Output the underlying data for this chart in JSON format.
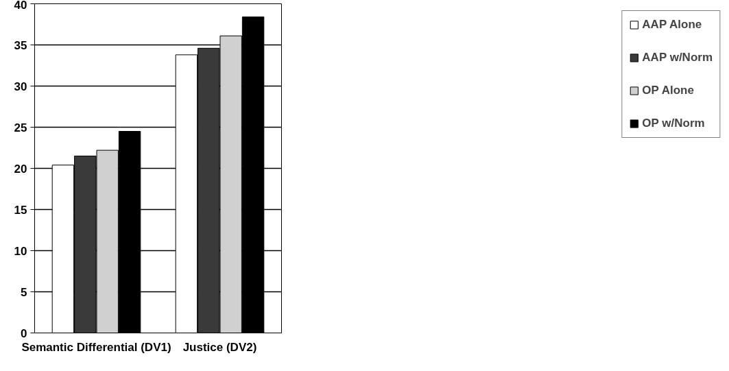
{
  "chart_data": {
    "type": "bar",
    "categories": [
      "Semantic Differential (DV1)",
      "Justice (DV2)"
    ],
    "series": [
      {
        "name": "AAP Alone",
        "color": "#ffffff",
        "values": [
          20.4,
          33.8
        ]
      },
      {
        "name": "AAP w/Norm",
        "color": "#3a3a3a",
        "values": [
          21.5,
          34.6
        ]
      },
      {
        "name": "OP Alone",
        "color": "#d0d0d0",
        "values": [
          22.2,
          36.1
        ]
      },
      {
        "name": "OP w/Norm",
        "color": "#000000",
        "values": [
          24.5,
          38.4
        ]
      }
    ],
    "ylim": [
      0,
      40
    ],
    "yticks": [
      0,
      5,
      10,
      15,
      20,
      25,
      30,
      35,
      40
    ],
    "grid": "y",
    "legend": "right"
  }
}
